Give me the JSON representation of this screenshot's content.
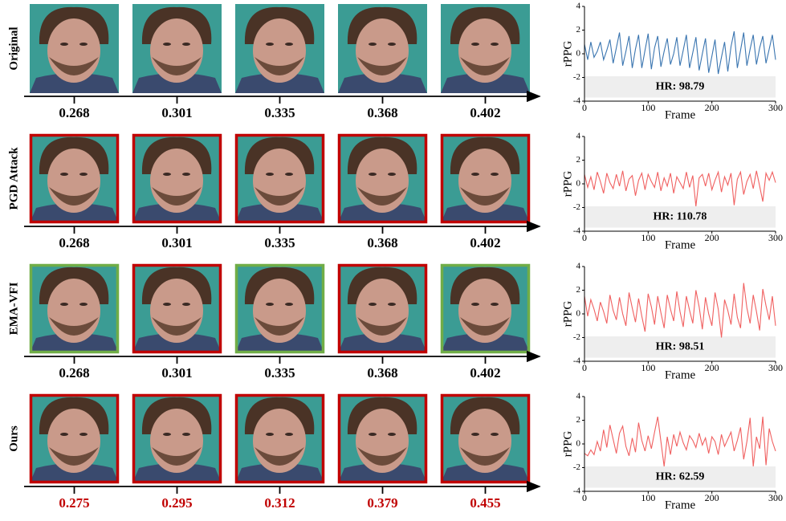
{
  "rows": [
    {
      "label": "Original",
      "frame_colors": [
        null,
        null,
        null,
        null,
        null
      ],
      "timestamps": [
        0.268,
        0.301,
        0.335,
        0.368,
        0.402
      ],
      "timestamp_color": "#000000"
    },
    {
      "label": "PGD Attack",
      "frame_colors": [
        "#c00000",
        "#c00000",
        "#c00000",
        "#c00000",
        "#c00000"
      ],
      "timestamps": [
        0.268,
        0.301,
        0.335,
        0.368,
        0.402
      ],
      "timestamp_color": "#000000"
    },
    {
      "label": "EMA-VFI",
      "frame_colors": [
        "#70ad47",
        "#c00000",
        "#70ad47",
        "#c00000",
        "#70ad47"
      ],
      "timestamps": [
        0.268,
        0.301,
        0.335,
        0.368,
        0.402
      ],
      "timestamp_color": "#000000"
    },
    {
      "label": "Ours",
      "frame_colors": [
        "#c00000",
        "#c00000",
        "#c00000",
        "#c00000",
        "#c00000"
      ],
      "timestamps": [
        0.275,
        0.295,
        0.312,
        0.379,
        0.455
      ],
      "timestamp_color": "#c00000"
    }
  ],
  "chart_data": [
    {
      "type": "line",
      "x_label": "Frame",
      "y_label": "rPPG",
      "annotation": "HR: 98.79",
      "shaded_band": [
        -3.7,
        -1.9
      ],
      "xlim": [
        0,
        300
      ],
      "xticks": [
        0,
        100,
        200,
        300
      ],
      "ylim": [
        -4,
        4
      ],
      "yticks": [
        -4,
        -2,
        0,
        2,
        4
      ],
      "color": "#3a75b0",
      "x": [
        0,
        5,
        10,
        15,
        20,
        25,
        30,
        35,
        40,
        45,
        50,
        55,
        60,
        65,
        70,
        75,
        80,
        85,
        90,
        95,
        100,
        105,
        110,
        115,
        120,
        125,
        130,
        135,
        140,
        145,
        150,
        155,
        160,
        165,
        170,
        175,
        180,
        185,
        190,
        195,
        200,
        205,
        210,
        215,
        220,
        225,
        230,
        235,
        240,
        245,
        250,
        255,
        260,
        265,
        270,
        275,
        280,
        285,
        290,
        295,
        300
      ],
      "values": [
        0.8,
        -0.5,
        1.0,
        -0.3,
        0.2,
        1.0,
        -0.5,
        0.3,
        1.2,
        -0.8,
        0.5,
        1.8,
        -1.0,
        0.2,
        1.5,
        -1.2,
        0.4,
        1.6,
        -1.2,
        0.3,
        1.7,
        -1.3,
        0.5,
        1.5,
        -1.1,
        0.2,
        1.3,
        -0.9,
        0.0,
        1.4,
        -1.0,
        0.3,
        1.6,
        -1.2,
        0.1,
        1.4,
        -1.4,
        0.0,
        1.3,
        -1.6,
        -0.2,
        1.2,
        -1.7,
        -0.3,
        1.0,
        -1.5,
        0.6,
        1.9,
        -1.2,
        0.3,
        1.8,
        -1.0,
        0.4,
        1.6,
        -0.9,
        0.5,
        1.5,
        -0.8,
        0.4,
        1.6,
        -0.5
      ]
    },
    {
      "type": "line",
      "x_label": "Frame",
      "y_label": "rPPG",
      "annotation": "HR: 110.78",
      "shaded_band": [
        -3.7,
        -1.9
      ],
      "xlim": [
        0,
        300
      ],
      "xticks": [
        0,
        100,
        200,
        300
      ],
      "ylim": [
        -4,
        4
      ],
      "yticks": [
        -4,
        -2,
        0,
        2,
        4
      ],
      "color": "#f06060",
      "x": [
        0,
        5,
        10,
        15,
        20,
        25,
        30,
        35,
        40,
        45,
        50,
        55,
        60,
        65,
        70,
        75,
        80,
        85,
        90,
        95,
        100,
        105,
        110,
        115,
        120,
        125,
        130,
        135,
        140,
        145,
        150,
        155,
        160,
        165,
        170,
        175,
        180,
        185,
        190,
        195,
        200,
        205,
        210,
        215,
        220,
        225,
        230,
        235,
        240,
        245,
        250,
        255,
        260,
        265,
        270,
        275,
        280,
        285,
        290,
        295,
        300
      ],
      "values": [
        0.8,
        -0.3,
        0.6,
        -0.5,
        1.0,
        0.2,
        -0.8,
        0.9,
        0.1,
        -0.4,
        0.8,
        -0.2,
        1.1,
        -0.6,
        0.4,
        0.7,
        -1.0,
        0.3,
        0.9,
        -0.5,
        0.8,
        0.2,
        -0.3,
        1.0,
        -0.6,
        0.5,
        -0.2,
        0.9,
        -0.8,
        0.6,
        0.1,
        -0.4,
        1.0,
        -0.3,
        0.7,
        -1.9,
        0.5,
        0.8,
        -0.2,
        0.9,
        -0.5,
        0.3,
        1.0,
        -0.7,
        0.6,
        -0.1,
        0.9,
        -1.8,
        0.4,
        1.0,
        -0.9,
        0.2,
        0.8,
        -0.4,
        1.1,
        -0.2,
        -1.5,
        0.9,
        0.3,
        1.0,
        0.1
      ]
    },
    {
      "type": "line",
      "x_label": "Frame",
      "y_label": "rPPG",
      "annotation": "HR: 98.51",
      "shaded_band": [
        -3.7,
        -1.9
      ],
      "xlim": [
        0,
        300
      ],
      "xticks": [
        0,
        100,
        200,
        300
      ],
      "ylim": [
        -4,
        4
      ],
      "yticks": [
        -4,
        -2,
        0,
        2,
        4
      ],
      "color": "#f06060",
      "x": [
        0,
        5,
        10,
        15,
        20,
        25,
        30,
        35,
        40,
        45,
        50,
        55,
        60,
        65,
        70,
        75,
        80,
        85,
        90,
        95,
        100,
        105,
        110,
        115,
        120,
        125,
        130,
        135,
        140,
        145,
        150,
        155,
        160,
        165,
        170,
        175,
        180,
        185,
        190,
        195,
        200,
        205,
        210,
        215,
        220,
        225,
        230,
        235,
        240,
        245,
        250,
        255,
        260,
        265,
        270,
        275,
        280,
        285,
        290,
        295,
        300
      ],
      "values": [
        1.5,
        -0.2,
        1.2,
        0.4,
        -0.6,
        1.0,
        0.2,
        -0.8,
        1.6,
        0.3,
        -0.5,
        1.4,
        0.0,
        -1.0,
        1.8,
        0.5,
        -0.7,
        1.3,
        -0.2,
        -1.5,
        1.7,
        0.6,
        -0.9,
        1.5,
        0.1,
        -1.2,
        1.6,
        0.4,
        -0.6,
        1.9,
        0.2,
        -1.1,
        1.5,
        0.3,
        -0.8,
        2.0,
        0.6,
        -1.3,
        1.4,
        0.0,
        -1.0,
        1.8,
        0.4,
        -2.0,
        1.2,
        0.3,
        -0.9,
        1.7,
        -0.3,
        -1.2,
        2.6,
        0.5,
        -0.8,
        1.6,
        0.2,
        -1.4,
        2.1,
        0.7,
        -0.5,
        1.5,
        -1.0
      ]
    },
    {
      "type": "line",
      "x_label": "Frame",
      "y_label": "rPPG",
      "annotation": "HR: 62.59",
      "shaded_band": [
        -3.7,
        -1.9
      ],
      "xlim": [
        0,
        300
      ],
      "xticks": [
        0,
        100,
        200,
        300
      ],
      "ylim": [
        -4,
        4
      ],
      "yticks": [
        -4,
        -2,
        0,
        2,
        4
      ],
      "color": "#f06060",
      "x": [
        0,
        5,
        10,
        15,
        20,
        25,
        30,
        35,
        40,
        45,
        50,
        55,
        60,
        65,
        70,
        75,
        80,
        85,
        90,
        95,
        100,
        105,
        110,
        115,
        120,
        125,
        130,
        135,
        140,
        145,
        150,
        155,
        160,
        165,
        170,
        175,
        180,
        185,
        190,
        195,
        200,
        205,
        210,
        215,
        220,
        225,
        230,
        235,
        240,
        245,
        250,
        255,
        260,
        265,
        270,
        275,
        280,
        285,
        290,
        295,
        300
      ],
      "values": [
        -0.8,
        -1.0,
        -0.5,
        -0.9,
        0.2,
        -0.6,
        1.2,
        -0.3,
        1.6,
        0.4,
        -0.8,
        0.9,
        1.5,
        -0.2,
        -1.0,
        0.5,
        -0.7,
        1.8,
        0.3,
        -0.6,
        0.7,
        -0.4,
        1.0,
        2.3,
        0.2,
        -1.9,
        0.6,
        -0.9,
        0.8,
        -0.2,
        1.0,
        0.1,
        -0.5,
        0.7,
        0.3,
        -0.3,
        0.9,
        -0.1,
        0.5,
        -0.8,
        0.6,
        0.2,
        -0.9,
        0.8,
        -0.2,
        0.4,
        1.0,
        -0.6,
        0.3,
        1.4,
        -1.3,
        0.2,
        2.2,
        -1.9,
        0.6,
        -0.4,
        2.3,
        -1.8,
        1.3,
        0.2,
        -0.6
      ]
    }
  ]
}
